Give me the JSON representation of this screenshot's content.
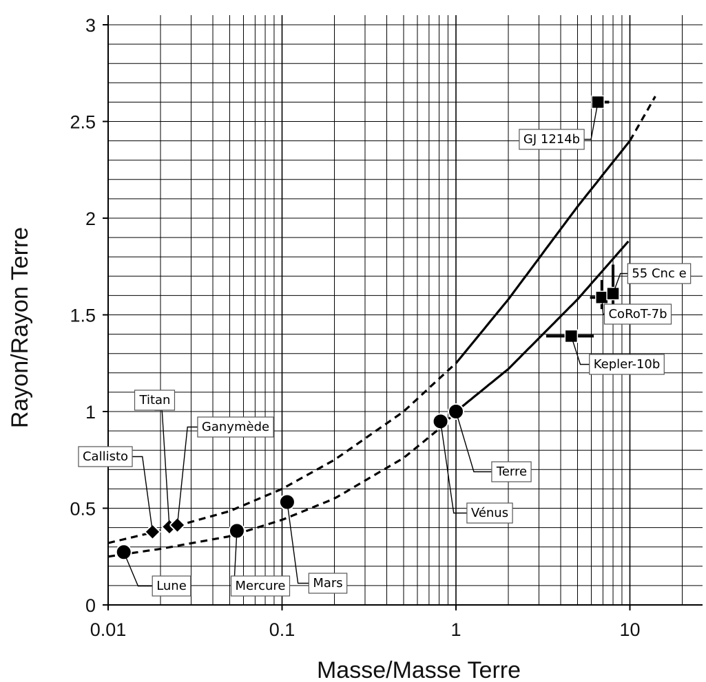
{
  "chart_data": {
    "type": "scatter",
    "title": "",
    "xlabel": "Masse/Masse Terre",
    "ylabel": "Rayon/Rayon Terre",
    "xscale": "log",
    "xlim": [
      0.01,
      30
    ],
    "ylim": [
      0,
      3.05
    ],
    "grid": true,
    "x_ticks": [
      "0.01",
      "0.1",
      "1",
      "10"
    ],
    "y_ticks": [
      "0",
      "0.5",
      "1",
      "1.5",
      "2",
      "2.5",
      "3"
    ],
    "curves": [
      {
        "style": "dashed-solid",
        "points": [
          [
            0.01,
            0.32
          ],
          [
            0.02,
            0.385
          ],
          [
            0.05,
            0.485
          ],
          [
            0.1,
            0.6
          ],
          [
            0.2,
            0.75
          ],
          [
            0.5,
            1.0
          ],
          [
            0.8,
            1.17
          ],
          [
            1,
            1.25
          ],
          [
            2,
            1.58
          ],
          [
            5,
            2.06
          ],
          [
            10,
            2.4
          ],
          [
            14,
            2.63
          ]
        ]
      },
      {
        "style": "dashed-solid",
        "points": [
          [
            0.01,
            0.25
          ],
          [
            0.02,
            0.29
          ],
          [
            0.05,
            0.355
          ],
          [
            0.1,
            0.44
          ],
          [
            0.2,
            0.55
          ],
          [
            0.5,
            0.76
          ],
          [
            0.8,
            0.91
          ],
          [
            1,
            1.0
          ],
          [
            2,
            1.22
          ],
          [
            5,
            1.58
          ],
          [
            9.8,
            1.88
          ]
        ]
      }
    ],
    "series": [
      {
        "marker": "circle",
        "points": [
          {
            "name": "Lune",
            "x": 0.0123,
            "y": 0.273
          },
          {
            "name": "Mercure",
            "x": 0.055,
            "y": 0.383
          },
          {
            "name": "Mars",
            "x": 0.107,
            "y": 0.532
          },
          {
            "name": "Vénus",
            "x": 0.815,
            "y": 0.949
          },
          {
            "name": "Terre",
            "x": 1.0,
            "y": 1.0
          }
        ]
      },
      {
        "marker": "diamond",
        "points": [
          {
            "name": "Callisto",
            "x": 0.018,
            "y": 0.378
          },
          {
            "name": "Titan",
            "x": 0.0225,
            "y": 0.404
          },
          {
            "name": "Ganymède",
            "x": 0.025,
            "y": 0.413
          }
        ]
      },
      {
        "marker": "square",
        "points": [
          {
            "name": "GJ 1214b",
            "x": 6.55,
            "y": 2.6,
            "x_err": [
              6.0,
              7.6
            ],
            "y_err": [
              2.59,
              2.61
            ]
          },
          {
            "name": "Kepler-10b",
            "x": 4.6,
            "y": 1.39,
            "x_err": [
              3.3,
              6.2
            ],
            "y_err": [
              1.38,
              1.4
            ]
          },
          {
            "name": "CoRoT-7b",
            "x": 6.9,
            "y": 1.59,
            "x_err": [
              5.9,
              7.9
            ],
            "y_err": [
              1.53,
              1.68
            ]
          },
          {
            "name": "55 Cnc e",
            "x": 8.0,
            "y": 1.61,
            "x_err": [
              7.3,
              8.7
            ],
            "y_err": [
              1.45,
              1.76
            ]
          }
        ]
      }
    ],
    "labels": [
      "Lune",
      "Mercure",
      "Mars",
      "Vénus",
      "Terre",
      "Callisto",
      "Titan",
      "Ganymède",
      "GJ 1214b",
      "Kepler-10b",
      "CoRoT-7b",
      "55 Cnc e"
    ]
  }
}
